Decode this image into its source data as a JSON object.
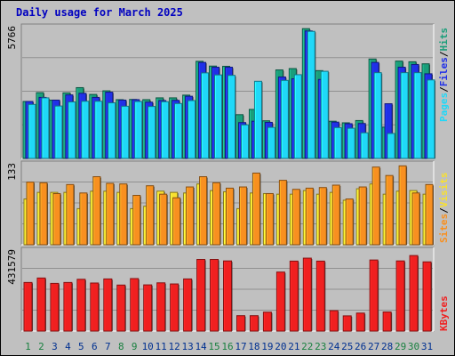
{
  "title": "Daily usage for March 2025",
  "colors": {
    "hits": "#1a9e7a",
    "files": "#2030e8",
    "pages": "#20d8f8",
    "visits": "#f8e030",
    "sites": "#f89020",
    "kbytes": "#f02020",
    "weekend_day": "#1a8040",
    "weekday": "#003090",
    "slash": "#000000"
  },
  "legend": {
    "top": [
      {
        "text": "Hits",
        "color_key": "hits"
      },
      {
        "text": "/",
        "color_key": "slash"
      },
      {
        "text": "Files",
        "color_key": "files"
      },
      {
        "text": "/",
        "color_key": "slash"
      },
      {
        "text": "Pages",
        "color_key": "pages"
      }
    ],
    "mid": [
      {
        "text": "Visits",
        "color_key": "visits"
      },
      {
        "text": "/",
        "color_key": "slash"
      },
      {
        "text": "Sites",
        "color_key": "sites"
      }
    ],
    "bottom": [
      {
        "text": "KBytes",
        "color_key": "kbytes"
      }
    ]
  },
  "chart_data": [
    {
      "type": "bar",
      "panel": "hits-files-pages",
      "ymax_label": "5766",
      "ylim": [
        0,
        5766
      ],
      "categories": [
        "1",
        "2",
        "3",
        "4",
        "5",
        "6",
        "7",
        "8",
        "9",
        "10",
        "11",
        "12",
        "13",
        "14",
        "15",
        "16",
        "17",
        "18",
        "19",
        "20",
        "21",
        "22",
        "23",
        "24",
        "25",
        "26",
        "27",
        "28",
        "29",
        "30",
        "31"
      ],
      "weekend": [
        1,
        2,
        8,
        9,
        15,
        16,
        22,
        23,
        29,
        30
      ],
      "series": [
        {
          "name": "Hits",
          "color_key": "hits",
          "values": [
            2510,
            2900,
            2570,
            2890,
            3120,
            2820,
            2980,
            2590,
            2600,
            2590,
            2670,
            2670,
            2790,
            4280,
            4070,
            4060,
            1930,
            2160,
            1660,
            3900,
            3960,
            5720,
            3870,
            1640,
            1570,
            1670,
            4380,
            1380,
            4290,
            4260,
            4170
          ]
        },
        {
          "name": "Files",
          "color_key": "files",
          "values": [
            2510,
            2690,
            2570,
            2800,
            2870,
            2690,
            2920,
            2570,
            2590,
            2480,
            2550,
            2560,
            2740,
            4230,
            4020,
            4020,
            1580,
            1640,
            1590,
            3590,
            3510,
            5620,
            3480,
            1600,
            1530,
            1540,
            4230,
            2410,
            4020,
            4140,
            3730
          ]
        },
        {
          "name": "Pages",
          "color_key": "pages",
          "values": [
            2380,
            2670,
            2310,
            2490,
            2520,
            2520,
            2450,
            2300,
            2510,
            2290,
            2500,
            2420,
            2550,
            3770,
            3680,
            3660,
            1480,
            3400,
            1370,
            3440,
            3690,
            5600,
            3840,
            1360,
            1330,
            1130,
            3780,
            1100,
            3780,
            3780,
            3460
          ]
        }
      ]
    },
    {
      "type": "bar",
      "panel": "visits-sites",
      "ymax_label": "133",
      "ylim": [
        0,
        133
      ],
      "categories": [
        "1",
        "2",
        "3",
        "4",
        "5",
        "6",
        "7",
        "8",
        "9",
        "10",
        "11",
        "12",
        "13",
        "14",
        "15",
        "16",
        "17",
        "18",
        "19",
        "20",
        "21",
        "22",
        "23",
        "24",
        "25",
        "26",
        "27",
        "28",
        "29",
        "30",
        "31"
      ],
      "series": [
        {
          "name": "Visits",
          "color_key": "visits",
          "values": [
            76,
            87,
            87,
            87,
            60,
            89,
            89,
            87,
            60,
            64,
            89,
            87,
            86,
            101,
            90,
            88,
            60,
            86,
            85,
            84,
            84,
            90,
            84,
            87,
            74,
            93,
            101,
            84,
            89,
            90,
            84
          ]
        },
        {
          "name": "Sites",
          "color_key": "sites",
          "values": [
            104,
            103,
            85,
            100,
            86,
            113,
            102,
            101,
            82,
            98,
            84,
            78,
            96,
            113,
            103,
            94,
            96,
            119,
            85,
            107,
            92,
            94,
            95,
            99,
            76,
            96,
            129,
            115,
            131,
            86,
            100
          ]
        }
      ]
    },
    {
      "type": "bar",
      "panel": "kbytes",
      "ymax_label": "431579",
      "ylim": [
        0,
        431579
      ],
      "categories": [
        "1",
        "2",
        "3",
        "4",
        "5",
        "6",
        "7",
        "8",
        "9",
        "10",
        "11",
        "12",
        "13",
        "14",
        "15",
        "16",
        "17",
        "18",
        "19",
        "20",
        "21",
        "22",
        "23",
        "24",
        "25",
        "26",
        "27",
        "28",
        "29",
        "30",
        "31"
      ],
      "series": [
        {
          "name": "KBytes",
          "color_key": "kbytes",
          "values": [
            262000,
            286000,
            257000,
            262000,
            279000,
            259000,
            281000,
            248000,
            283000,
            249000,
            260000,
            254000,
            281000,
            386000,
            386000,
            378000,
            83000,
            83000,
            102000,
            318000,
            377000,
            393000,
            377000,
            110000,
            82000,
            97000,
            383000,
            103000,
            378000,
            407000,
            373000
          ]
        }
      ]
    }
  ]
}
